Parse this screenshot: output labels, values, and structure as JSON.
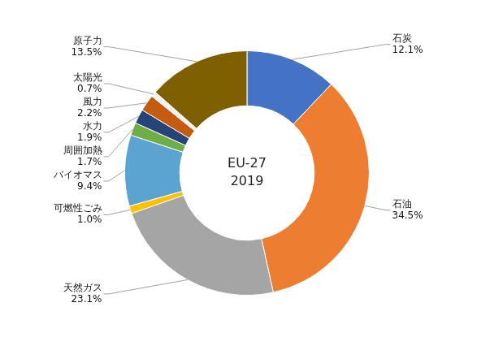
{
  "chart_data": {
    "type": "doughnut",
    "categories": [
      "石炭",
      "石油",
      "天然ガス",
      "可燃性ごみ",
      "バイオマス",
      "周囲加熱",
      "水力",
      "風力",
      "太陽光",
      "原子力"
    ],
    "values": [
      12.1,
      34.5,
      23.1,
      1.0,
      9.4,
      1.7,
      1.9,
      2.2,
      0.7,
      13.5
    ],
    "value_labels": [
      "12.1%",
      "34.5%",
      "23.1%",
      "1.0%",
      "9.4%",
      "1.7%",
      "1.9%",
      "2.2%",
      "0.7%",
      "13.5%"
    ],
    "colors": [
      "#4472c4",
      "#ed7d31",
      "#a5a5a5",
      "#ffc000",
      "#5ba3d0",
      "#70ad47",
      "#264478",
      "#c55a11",
      "#f2f2f2",
      "#7f6000"
    ],
    "data_labels": true,
    "annotations": [
      "EU-27",
      "2019"
    ]
  }
}
